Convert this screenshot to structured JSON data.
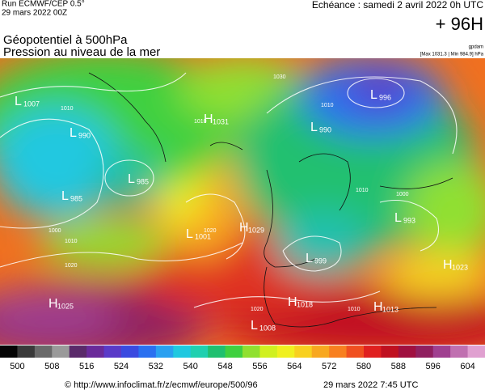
{
  "header": {
    "run": "Run ECMWF/CEP 0.5°",
    "run_date": "29 mars 2022 00Z",
    "echeance": "Echéance : samedi 2 avril 2022 0h UTC",
    "lead": "+ 96H",
    "title_line1": "Géopotentiel à 500hPa",
    "title_line2": "Pression au niveau de la mer",
    "unit": "gpdam",
    "extremes": "[Max 1031.3 | Min 984.9] hPa"
  },
  "pressure_centers": [
    {
      "letter": "L",
      "value": "1007"
    },
    {
      "letter": "L",
      "value": "990"
    },
    {
      "letter": "L",
      "value": "985"
    },
    {
      "letter": "L",
      "value": "985"
    },
    {
      "letter": "H",
      "value": "1031"
    },
    {
      "letter": "L",
      "value": "996"
    },
    {
      "letter": "L",
      "value": "990"
    },
    {
      "letter": "L",
      "value": "1001"
    },
    {
      "letter": "H",
      "value": "1029"
    },
    {
      "letter": "L",
      "value": "993"
    },
    {
      "letter": "H",
      "value": "1023"
    },
    {
      "letter": "L",
      "value": "999"
    },
    {
      "letter": "H",
      "value": "1025"
    },
    {
      "letter": "H",
      "value": "1018"
    },
    {
      "letter": "H",
      "value": "1013"
    },
    {
      "letter": "L",
      "value": "1008"
    }
  ],
  "isobar_labels": [
    "1010",
    "1010",
    "1000",
    "1020",
    "1010",
    "1020",
    "1030",
    "1010",
    "1000",
    "1010",
    "1010",
    "1020"
  ],
  "colorbar": {
    "colors": [
      "#050505",
      "#3a3a3a",
      "#6a6a6a",
      "#9a9a9a",
      "#5a2a6a",
      "#6a2a9a",
      "#5a3ac8",
      "#3a4ae0",
      "#2a70f0",
      "#2aa0f0",
      "#20c8e0",
      "#20d0b0",
      "#20c070",
      "#40d040",
      "#90e030",
      "#d0f020",
      "#f0f020",
      "#f8d020",
      "#f8a820",
      "#f88020",
      "#f05020",
      "#e02020",
      "#c01020",
      "#a01040",
      "#902060",
      "#a04090",
      "#c070b0",
      "#e0a0d0"
    ],
    "labels": [
      "500",
      "508",
      "516",
      "524",
      "532",
      "540",
      "548",
      "556",
      "564",
      "572",
      "580",
      "588",
      "596",
      "604"
    ]
  },
  "footer": {
    "url": "© http://www.infoclimat.fr/z/ecmwf/europe/500/96",
    "timestamp": "29 mars 2022  7:45 UTC"
  }
}
